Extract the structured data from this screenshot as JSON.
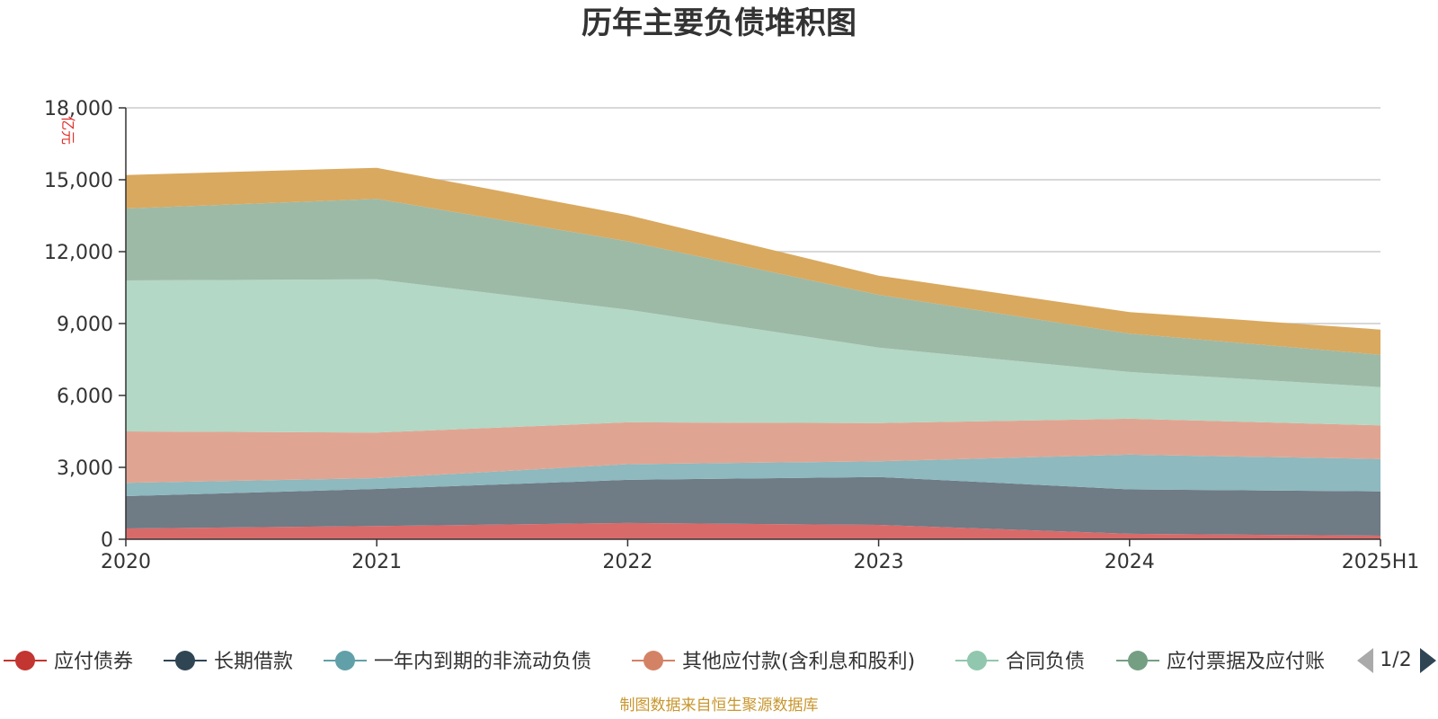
{
  "chart_data": {
    "type": "area",
    "title": "历年主要负债堆积图",
    "unit_label": "亿元",
    "categories": [
      "2020",
      "2021",
      "2022",
      "2023",
      "2024",
      "2025H1"
    ],
    "ylim": [
      0,
      18000
    ],
    "y_ticks": [
      "0",
      "3,000",
      "6,000",
      "9,000",
      "12,000",
      "15,000",
      "18,000"
    ],
    "y_tick_values": [
      0,
      3000,
      6000,
      9000,
      12000,
      15000,
      18000
    ],
    "grid": true,
    "stacked": true,
    "legend_position": "bottom",
    "series": [
      {
        "name": "应付债券",
        "values": [
          450,
          550,
          680,
          600,
          230,
          150
        ],
        "color": "#d96a6a",
        "marker": "#c23531"
      },
      {
        "name": "长期借款",
        "values": [
          1350,
          1550,
          1800,
          2000,
          1850,
          1850
        ],
        "color": "#6f7b85",
        "marker": "#2f4554"
      },
      {
        "name": "一年内到期的非流动负债",
        "values": [
          550,
          450,
          650,
          650,
          1450,
          1350
        ],
        "color": "#8db9bf",
        "marker": "#61a0a8"
      },
      {
        "name": "其他应付款(含利息和股利)",
        "values": [
          2150,
          1900,
          1750,
          1600,
          1500,
          1400
        ],
        "color": "#e0a592",
        "marker": "#d48265"
      },
      {
        "name": "合同负债",
        "values": [
          6300,
          6400,
          4700,
          3150,
          1950,
          1600
        ],
        "color": "#b3d8c5",
        "marker": "#91c7ae"
      },
      {
        "name": "应付票据及应付账款",
        "values": [
          3000,
          3350,
          2850,
          2200,
          1600,
          1350
        ],
        "color": "#9dbaa7",
        "marker": "#749f83"
      },
      {
        "name": "",
        "values": [
          1400,
          1300,
          1100,
          800,
          900,
          1050
        ],
        "color": "#d9a95f",
        "marker": "#ca8622"
      }
    ]
  },
  "legend": {
    "visible_items": [
      "应付债券",
      "长期借款",
      "一年内到期的非流动负债",
      "其他应付款(含利息和股利)",
      "合同负债",
      "应付票据及应付账"
    ],
    "page_indicator": "1/2",
    "prev_icon": "triangle-left-icon",
    "next_icon": "triangle-right-icon"
  },
  "footer": {
    "source": "制图数据来自恒生聚源数据库"
  }
}
